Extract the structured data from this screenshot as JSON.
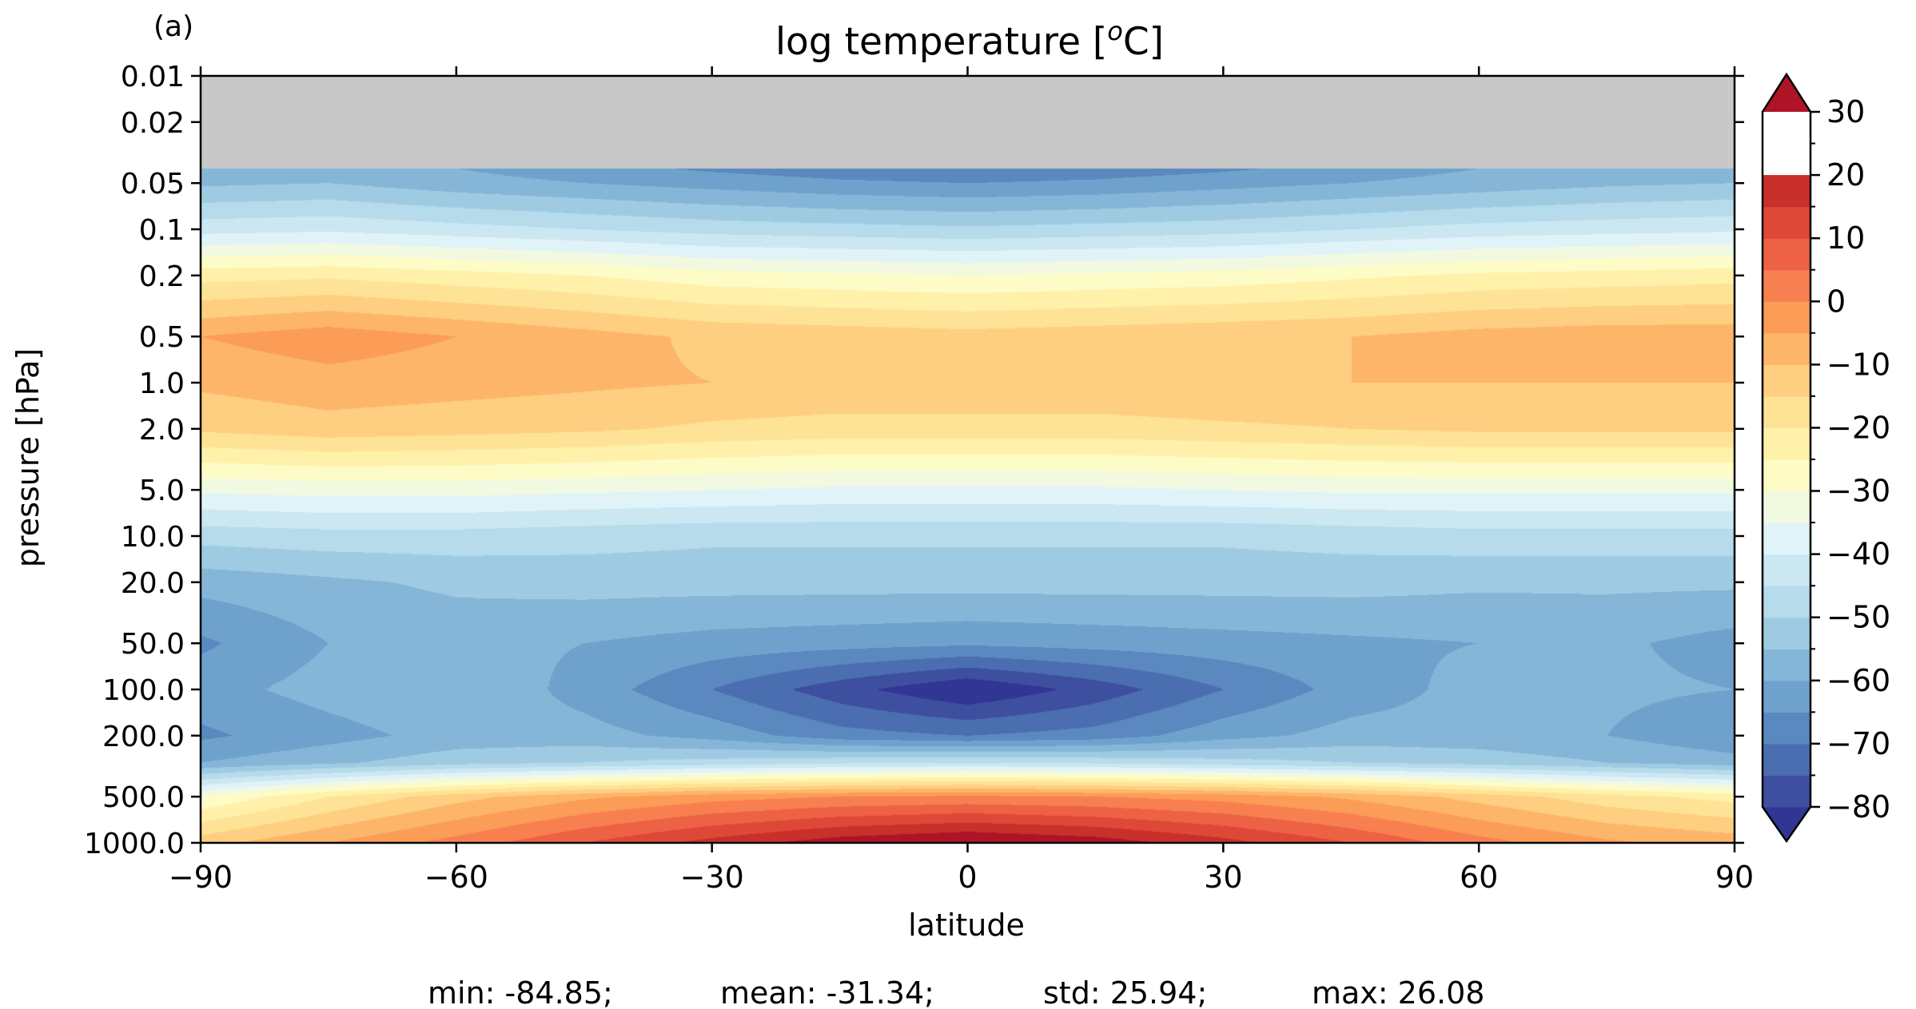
{
  "chart_data": {
    "type": "contour",
    "panel_label": "(a)",
    "title": "log temperature [",
    "title_superscript": "o",
    "title_suffix": "C]",
    "xlabel": "latitude",
    "ylabel": "pressure [hPa]",
    "x_scale": "linear",
    "y_scale": "log",
    "y_inverted": true,
    "xlim": [
      -90,
      90
    ],
    "ylim": [
      1000,
      0.01
    ],
    "x_ticks": [
      -90,
      -60,
      -30,
      0,
      30,
      60,
      90
    ],
    "x_tick_labels": [
      "−90",
      "−60",
      "−30",
      "0",
      "30",
      "60",
      "90"
    ],
    "y_ticks": [
      0.01,
      0.02,
      0.05,
      0.1,
      0.2,
      0.5,
      1,
      2,
      5,
      10,
      20,
      50,
      100,
      200,
      500,
      1000
    ],
    "y_tick_labels": [
      "0.01",
      "0.02",
      "0.05",
      "0.1",
      "0.2",
      "0.5",
      "1.0",
      "2.0",
      "5.0",
      "10.0",
      "20.0",
      "50.0",
      "100.0",
      "200.0",
      "500.0",
      "1000.0"
    ],
    "masked_region": {
      "color": "#c8c8c8",
      "pressure_min": 0.01,
      "pressure_max": 0.04
    },
    "colormap": "RdYlBu_r",
    "extend": "both",
    "colorbar": {
      "vmin": -80,
      "vmax": 30,
      "step": 5,
      "tick_values": [
        30,
        20,
        10,
        0,
        -10,
        -20,
        -30,
        -40,
        -50,
        -60,
        -70,
        -80
      ],
      "tick_labels": [
        "30",
        "20",
        "10",
        "0",
        "−10",
        "−20",
        "−30",
        "−40",
        "−50",
        "−60",
        "−70",
        "−80"
      ],
      "colors": [
        "#313695",
        "#3e4fa0",
        "#4a6eb0",
        "#5a88bf",
        "#6ea2cd",
        "#86b6d7",
        "#9fcbe2",
        "#b6dbea",
        "#cbe7f1",
        "#e0f3f8",
        "#f2f9e1",
        "#fdfcc7",
        "#fff1aa",
        "#fee396",
        "#fecf80",
        "#fdb56a",
        "#fb9c57",
        "#f88050",
        "#ed6244",
        "#de4836",
        "#c9302c",
        "#ae1426"
      ]
    },
    "profile_latitudes": [
      -90,
      -75,
      -60,
      -45,
      -30,
      -15,
      0,
      15,
      30,
      45,
      60,
      75,
      90
    ],
    "profile_pressures": [
      0.04,
      0.05,
      0.1,
      0.2,
      0.5,
      1,
      2,
      5,
      10,
      20,
      50,
      100,
      200,
      300,
      500,
      1000
    ],
    "temperature_profiles": [
      [
        -58,
        -56,
        -42,
        -22,
        -5,
        -9,
        -14,
        -34,
        -48,
        -58,
        -66,
        -62,
        -66,
        -60,
        -30,
        -12
      ],
      [
        -57,
        -55,
        -41,
        -21,
        -2,
        -7,
        -12,
        -33,
        -47,
        -56,
        -60,
        -58,
        -62,
        -56,
        -20,
        -5
      ],
      [
        -60,
        -58,
        -43,
        -23,
        -5,
        -8,
        -13,
        -33,
        -47,
        -54,
        -58,
        -55,
        -58,
        -52,
        -12,
        2
      ],
      [
        -63,
        -60,
        -45,
        -25,
        -8,
        -9,
        -14,
        -34,
        -48,
        -53,
        -60,
        -62,
        -58,
        -50,
        -6,
        10
      ],
      [
        -66,
        -62,
        -47,
        -28,
        -11,
        -10,
        -16,
        -35,
        -49,
        -53,
        -62,
        -70,
        -62,
        -48,
        -2,
        17
      ],
      [
        -68,
        -64,
        -48,
        -29,
        -12,
        -11,
        -17,
        -36,
        -49,
        -53,
        -63,
        -78,
        -68,
        -46,
        0,
        23
      ],
      [
        -69,
        -65,
        -49,
        -30,
        -13,
        -11,
        -17,
        -36,
        -49,
        -53,
        -64,
        -85,
        -70,
        -45,
        1,
        26
      ],
      [
        -68,
        -64,
        -48,
        -29,
        -12,
        -11,
        -17,
        -36,
        -49,
        -53,
        -63,
        -78,
        -68,
        -46,
        0,
        23
      ],
      [
        -66,
        -62,
        -47,
        -28,
        -11,
        -10,
        -16,
        -35,
        -49,
        -53,
        -62,
        -70,
        -62,
        -48,
        -2,
        17
      ],
      [
        -63,
        -60,
        -45,
        -26,
        -10,
        -10,
        -15,
        -34,
        -48,
        -53,
        -61,
        -63,
        -58,
        -50,
        -6,
        10
      ],
      [
        -60,
        -58,
        -43,
        -24,
        -8,
        -10,
        -14,
        -34,
        -47,
        -54,
        -60,
        -58,
        -58,
        -52,
        -12,
        2
      ],
      [
        -58,
        -56,
        -42,
        -23,
        -7,
        -10,
        -14,
        -34,
        -47,
        -54,
        -59,
        -59,
        -60,
        -55,
        -18,
        -4
      ],
      [
        -57,
        -55,
        -41,
        -22,
        -7,
        -10,
        -14,
        -34,
        -47,
        -54,
        -62,
        -60,
        -64,
        -58,
        -22,
        -7
      ]
    ],
    "stats_text": [
      "min: -84.85;",
      "mean: -31.34;",
      "std: 25.94;",
      "max: 26.08"
    ]
  }
}
